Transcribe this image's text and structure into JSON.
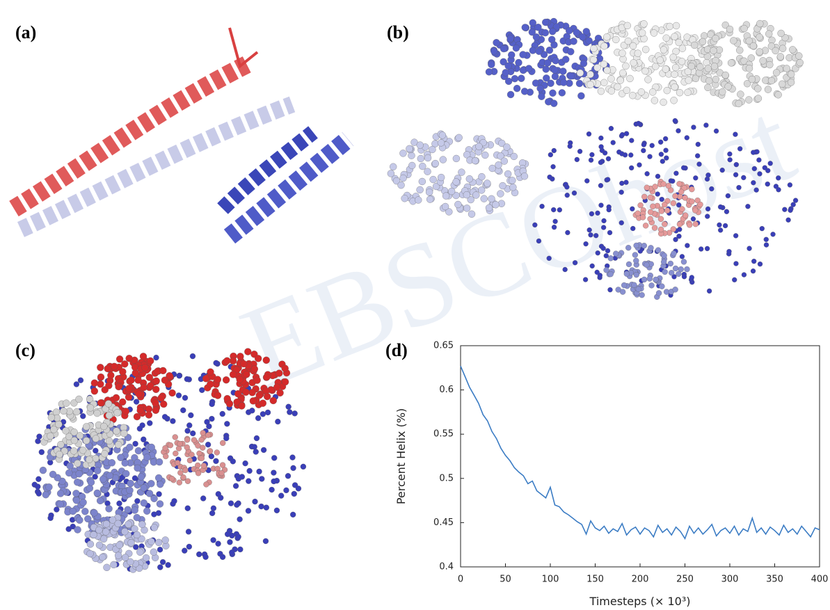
{
  "panel_labels": [
    "(a)",
    "(b)",
    "(c)",
    "(d)"
  ],
  "watermark": "EBSCOhost",
  "chart_data": {
    "type": "line",
    "xlabel": "Timesteps (× 10³)",
    "ylabel": "Percent Helix (%)",
    "x": [
      0,
      5,
      10,
      15,
      20,
      25,
      30,
      35,
      40,
      45,
      50,
      55,
      60,
      65,
      70,
      75,
      80,
      85,
      90,
      95,
      100,
      105,
      110,
      115,
      120,
      125,
      130,
      135,
      140,
      145,
      150,
      155,
      160,
      165,
      170,
      175,
      180,
      185,
      190,
      195,
      200,
      205,
      210,
      215,
      220,
      225,
      230,
      235,
      240,
      245,
      250,
      255,
      260,
      265,
      270,
      275,
      280,
      285,
      290,
      295,
      300,
      305,
      310,
      315,
      320,
      325,
      330,
      335,
      340,
      345,
      350,
      355,
      360,
      365,
      370,
      375,
      380,
      385,
      390,
      395,
      400
    ],
    "values": [
      0.627,
      0.615,
      0.603,
      0.594,
      0.585,
      0.572,
      0.565,
      0.553,
      0.545,
      0.534,
      0.526,
      0.52,
      0.512,
      0.507,
      0.503,
      0.494,
      0.497,
      0.486,
      0.482,
      0.478,
      0.49,
      0.47,
      0.468,
      0.462,
      0.459,
      0.455,
      0.451,
      0.448,
      0.437,
      0.452,
      0.444,
      0.441,
      0.446,
      0.438,
      0.443,
      0.44,
      0.449,
      0.436,
      0.442,
      0.445,
      0.437,
      0.444,
      0.441,
      0.434,
      0.447,
      0.439,
      0.443,
      0.436,
      0.445,
      0.44,
      0.432,
      0.446,
      0.438,
      0.444,
      0.437,
      0.442,
      0.448,
      0.435,
      0.441,
      0.444,
      0.438,
      0.446,
      0.436,
      0.443,
      0.44,
      0.455,
      0.439,
      0.444,
      0.437,
      0.445,
      0.441,
      0.436,
      0.447,
      0.439,
      0.443,
      0.437,
      0.446,
      0.44,
      0.434,
      0.444,
      0.442
    ],
    "color": "#3b7cc4",
    "xlim": [
      0,
      400
    ],
    "xticks": [
      0,
      50,
      100,
      150,
      200,
      250,
      300,
      350,
      400
    ],
    "ylim": [
      0.4,
      0.65
    ],
    "yticks": [
      0.4,
      0.45,
      0.5,
      0.55,
      0.6,
      0.65
    ]
  }
}
